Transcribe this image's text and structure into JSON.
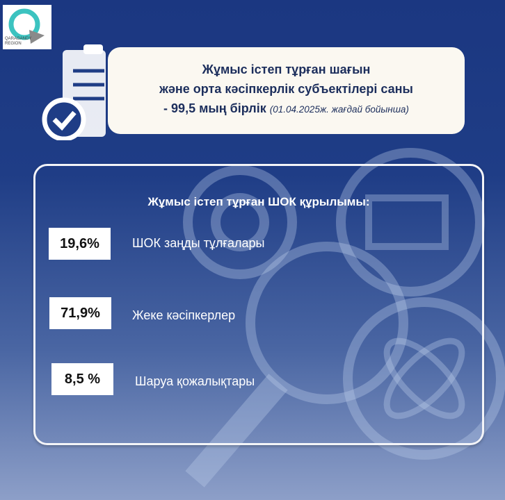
{
  "logo": {
    "text_line1": "QARAGANDY",
    "text_line2": "REGION",
    "accent": "#3cc3c0"
  },
  "header": {
    "line1": "Жұмыс істеп тұрған шағын",
    "line2": "және орта кәсіпкерлік субъектілері саны",
    "line3": "- 99,5 мың бірлік",
    "date_note": "(01.04.2025ж. жағдай бойынша)"
  },
  "panel": {
    "title": "Жұмыс істеп тұрған ШОК құрылымы:",
    "items": [
      {
        "value": "19,6%",
        "label": "ШОК заңды тұлғалары"
      },
      {
        "value": "71,9%",
        "label": "Жеке кәсіпкерлер"
      },
      {
        "value": "8,5 %",
        "label": "Шаруа қожалықтары"
      }
    ]
  },
  "icons": [
    "clipboard-check-icon",
    "gear-icon",
    "magnifier-chart-icon",
    "magnifier-icon",
    "magnifier-atom-icon"
  ]
}
